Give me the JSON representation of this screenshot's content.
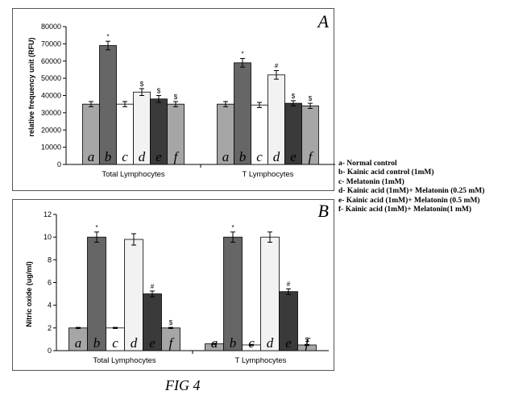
{
  "figure_caption": "FIG 4",
  "legend": [
    "a- Normal control",
    "b- Kainic acid control (1mM)",
    "c- Melatonin (1mM)",
    "d- Kainic acid (1mM)+ Melatonin (0.25 mM)",
    "e- Kainic acid (1mM)+ Melatonin (0.5 mM)",
    "f- Kainic acid (1mM)+ Melatonin(1 mM)"
  ],
  "bar_colors": [
    "#a6a6a6",
    "#666666",
    "#ffffff",
    "#f2f2f2",
    "#3a3a3a",
    "#a6a6a6"
  ],
  "chart_data": [
    {
      "type": "bar",
      "panel_label": "A",
      "ylabel": "relative frequency unit (RFU)",
      "xlabel": "",
      "ylim": [
        0,
        80000
      ],
      "yticks": [
        "0",
        "10000",
        "20000",
        "30000",
        "40000",
        "50000",
        "60000",
        "70000",
        "80000"
      ],
      "categories": [
        "Total Lymphocytes",
        "T Lymphocytes"
      ],
      "bar_letters": [
        "a",
        "b",
        "c",
        "d",
        "e",
        "f"
      ],
      "series": [
        {
          "letter": "a",
          "values": [
            35000,
            35000
          ],
          "errors": [
            1500,
            1500
          ],
          "marks": [
            "",
            ""
          ]
        },
        {
          "letter": "b",
          "values": [
            69000,
            59000
          ],
          "errors": [
            2500,
            2500
          ],
          "marks": [
            "*",
            "*"
          ]
        },
        {
          "letter": "c",
          "values": [
            35000,
            34500
          ],
          "errors": [
            1500,
            1500
          ],
          "marks": [
            "",
            ""
          ]
        },
        {
          "letter": "d",
          "values": [
            42000,
            52000
          ],
          "errors": [
            2000,
            2500
          ],
          "marks": [
            "$",
            "#"
          ]
        },
        {
          "letter": "e",
          "values": [
            38000,
            35500
          ],
          "errors": [
            2000,
            1500
          ],
          "marks": [
            "$",
            "$"
          ]
        },
        {
          "letter": "f",
          "values": [
            35000,
            34000
          ],
          "errors": [
            1500,
            1500
          ],
          "marks": [
            "$",
            "$"
          ]
        }
      ],
      "grid": false
    },
    {
      "type": "bar",
      "panel_label": "B",
      "ylabel": "Nitric oxide (ug/ml)",
      "xlabel": "",
      "ylim": [
        0,
        12
      ],
      "yticks": [
        "0",
        "2",
        "4",
        "6",
        "8",
        "10",
        "12"
      ],
      "categories": [
        "Total Lymphocytes",
        "T Lymphocytes"
      ],
      "bar_letters": [
        "a",
        "b",
        "c",
        "d",
        "e",
        "f"
      ],
      "series": [
        {
          "letter": "a",
          "values": [
            2.0,
            0.6
          ],
          "errors": [
            0.05,
            0.05
          ],
          "marks": [
            "",
            ""
          ]
        },
        {
          "letter": "b",
          "values": [
            10.0,
            10.0
          ],
          "errors": [
            0.45,
            0.45
          ],
          "marks": [
            "*",
            "*"
          ]
        },
        {
          "letter": "c",
          "values": [
            2.0,
            0.5
          ],
          "errors": [
            0.05,
            0.05
          ],
          "marks": [
            "",
            ""
          ]
        },
        {
          "letter": "d",
          "values": [
            9.8,
            10.0
          ],
          "errors": [
            0.5,
            0.45
          ],
          "marks": [
            "",
            ""
          ]
        },
        {
          "letter": "e",
          "values": [
            5.0,
            5.2
          ],
          "errors": [
            0.25,
            0.25
          ],
          "marks": [
            "#",
            "#"
          ]
        },
        {
          "letter": "f",
          "values": [
            2.0,
            0.5
          ],
          "errors": [
            0.05,
            0.05
          ],
          "marks": [
            "$",
            "$"
          ]
        }
      ],
      "grid": false
    }
  ]
}
